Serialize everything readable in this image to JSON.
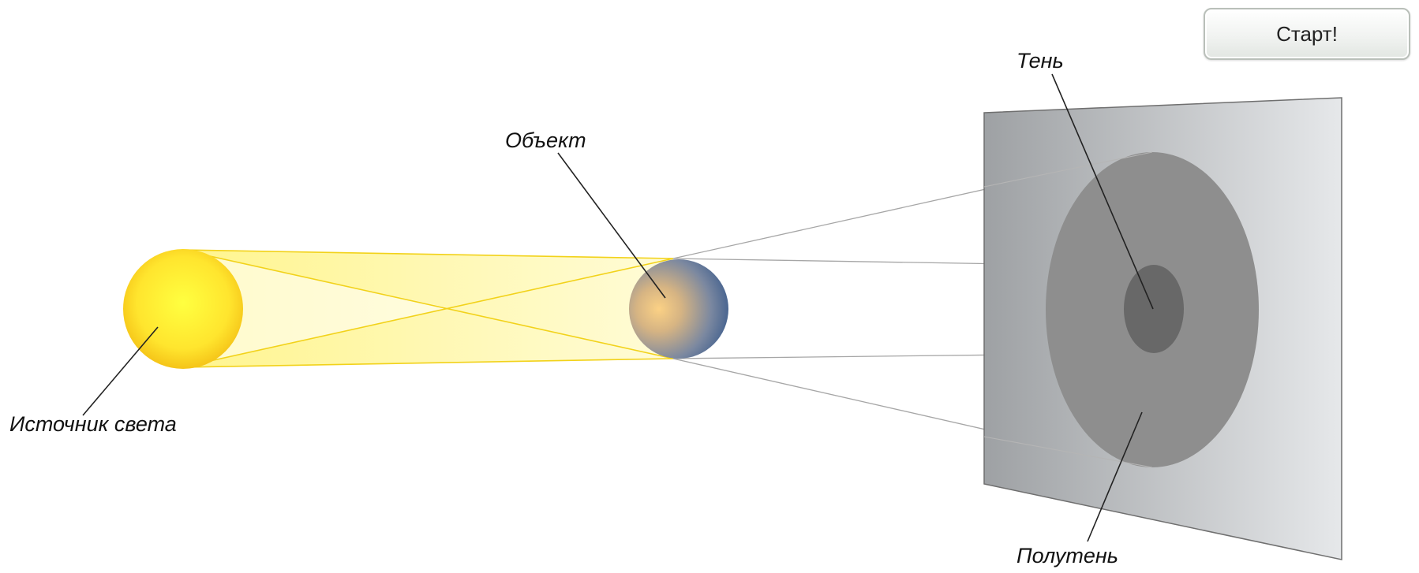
{
  "labels": {
    "light_source": "Источник света",
    "object": "Объект",
    "shadow": "Тень",
    "penumbra": "Полутень"
  },
  "controls": {
    "start_label": "Старт!"
  },
  "colors": {
    "light_source": "#ffe633",
    "light_beam": "#fff48a",
    "object_warm": "#fbd185",
    "object_cool": "#3c5c8c",
    "screen_dark": "#9ea1a4",
    "screen_light": "#e6e8ea",
    "penumbra": "#8e8e8e",
    "umbra": "#686868"
  }
}
